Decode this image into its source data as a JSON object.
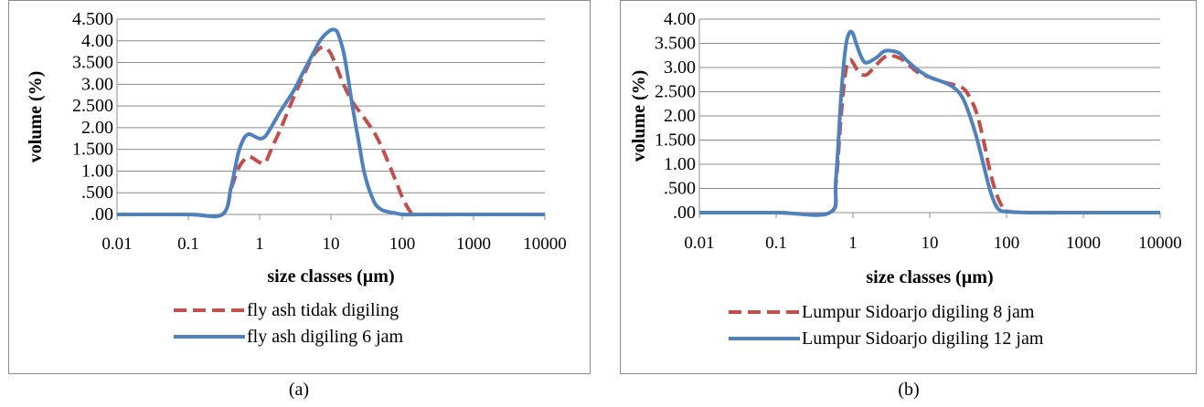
{
  "captions": {
    "a": "(a)",
    "b": "(b)"
  },
  "colors": {
    "series1": "#c0504d",
    "series2": "#4f81bd",
    "grid": "#8c8c8c"
  },
  "chart_data": [
    {
      "type": "line",
      "panel": "a",
      "xscale": "log",
      "xlim": [
        0.01,
        10000
      ],
      "ylim": [
        0,
        4.5
      ],
      "xticks": [
        "0.01",
        "0.1",
        "1",
        "10",
        "100",
        "1000",
        "10000"
      ],
      "yticks": [
        ".00",
        ".500",
        "1.00",
        "1.500",
        "2.00",
        "2.500",
        "3.00",
        "3.500",
        "4.00",
        "4.500"
      ],
      "xlabel": "size classes (µm)",
      "ylabel": "volume (%)",
      "legend_position": "bottom",
      "grid": true,
      "series": [
        {
          "name": "fly ash tidak digiling",
          "style": "dashed",
          "x": [
            0.01,
            0.1,
            0.3,
            0.4,
            0.5,
            0.6,
            0.7,
            0.8,
            1.0,
            1.2,
            1.5,
            2,
            3,
            4,
            5,
            6,
            7,
            8,
            9,
            10,
            12,
            15,
            20,
            30,
            40,
            50,
            60,
            80,
            100,
            120,
            140,
            200,
            1000,
            10000
          ],
          "y": [
            0,
            0,
            0,
            0.6,
            1.05,
            1.25,
            1.33,
            1.3,
            1.2,
            1.2,
            1.55,
            2.0,
            2.7,
            3.15,
            3.5,
            3.72,
            3.83,
            3.86,
            3.8,
            3.7,
            3.4,
            3.0,
            2.6,
            2.2,
            1.9,
            1.6,
            1.3,
            0.8,
            0.4,
            0.15,
            0.02,
            0,
            0,
            0
          ]
        },
        {
          "name": "fly ash digiling 6 jam",
          "style": "solid",
          "x": [
            0.01,
            0.1,
            0.3,
            0.4,
            0.5,
            0.6,
            0.7,
            0.8,
            1.0,
            1.2,
            1.5,
            2,
            3,
            4,
            5,
            6,
            7,
            8,
            9,
            10,
            11,
            12,
            13,
            15,
            17,
            20,
            25,
            30,
            40,
            50,
            60,
            80,
            100,
            150,
            1000,
            10000
          ],
          "y": [
            0,
            0,
            0,
            0.65,
            1.4,
            1.75,
            1.85,
            1.82,
            1.75,
            1.8,
            2.05,
            2.4,
            2.85,
            3.25,
            3.55,
            3.8,
            4.0,
            4.12,
            4.2,
            4.25,
            4.26,
            4.23,
            4.1,
            3.75,
            3.25,
            2.5,
            1.6,
            0.9,
            0.3,
            0.12,
            0.07,
            0.03,
            0,
            0,
            0,
            0
          ]
        }
      ]
    },
    {
      "type": "line",
      "panel": "b",
      "xscale": "log",
      "xlim": [
        0.01,
        10000
      ],
      "ylim": [
        0,
        4.0
      ],
      "xticks": [
        "0.01",
        "0.1",
        "1",
        "10",
        "100",
        "1000",
        "10000"
      ],
      "yticks": [
        ".00",
        ".500",
        "1.00",
        "1.500",
        "2.00",
        "2.500",
        "3.00",
        "3.500",
        "4.00"
      ],
      "xlabel": "size classes (µm)",
      "ylabel": "volume (%)",
      "legend_position": "bottom",
      "grid": true,
      "series": [
        {
          "name": "Lumpur Sidoarjo digiling 8 jam",
          "style": "dashed",
          "x": [
            0.01,
            0.1,
            0.5,
            0.6,
            0.7,
            0.8,
            0.9,
            1.0,
            1.2,
            1.5,
            2,
            2.5,
            3,
            4,
            5,
            7,
            10,
            15,
            20,
            25,
            30,
            40,
            50,
            60,
            70,
            80,
            90,
            100,
            200,
            1000,
            10000
          ],
          "y": [
            0,
            0,
            0,
            0.6,
            2.0,
            2.9,
            3.15,
            3.1,
            2.9,
            2.85,
            3.05,
            3.2,
            3.25,
            3.2,
            3.1,
            2.9,
            2.8,
            2.7,
            2.65,
            2.6,
            2.5,
            2.1,
            1.5,
            0.9,
            0.5,
            0.25,
            0.1,
            0.03,
            0,
            0,
            0
          ]
        },
        {
          "name": "Lumpur Sidoarjo digiling 12 jam",
          "style": "solid",
          "x": [
            0.01,
            0.1,
            0.5,
            0.6,
            0.7,
            0.8,
            0.9,
            1.0,
            1.1,
            1.3,
            1.5,
            2,
            2.5,
            3,
            4,
            5,
            7,
            10,
            15,
            20,
            25,
            30,
            40,
            50,
            60,
            70,
            80,
            100,
            200,
            1000,
            10000
          ],
          "y": [
            0,
            0,
            0,
            0.7,
            2.4,
            3.4,
            3.72,
            3.7,
            3.5,
            3.2,
            3.1,
            3.2,
            3.33,
            3.35,
            3.3,
            3.15,
            2.95,
            2.8,
            2.7,
            2.6,
            2.45,
            2.2,
            1.6,
            1.0,
            0.5,
            0.2,
            0.06,
            0.02,
            0,
            0,
            0
          ]
        }
      ]
    }
  ]
}
